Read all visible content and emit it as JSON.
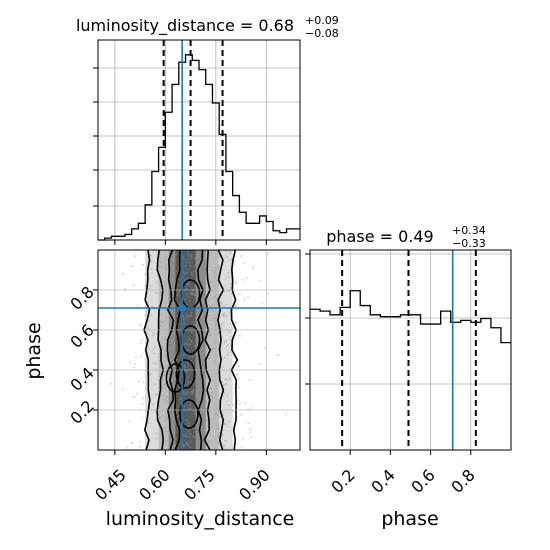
{
  "chart_data": {
    "type": "corner",
    "colors": {
      "truth": "#1f77b4",
      "hist": "#000000",
      "grid": "#b0b0b0",
      "scatter": "#9a9a9a"
    },
    "parameters": [
      "luminosity_distance",
      "phase"
    ],
    "truth": {
      "luminosity_distance": 0.65,
      "phase": 0.71
    },
    "grid": true,
    "panels": [
      {
        "id": "hist_luminosity_distance",
        "type": "histogram",
        "title": {
          "name": "luminosity_distance",
          "median": "0.68",
          "plus": "+0.09",
          "minus": "−0.08"
        },
        "xlim": [
          0.4,
          1.0
        ],
        "x_ticks": [
          0.45,
          0.6,
          0.75,
          0.9
        ],
        "ylim": [
          0,
          1.0
        ],
        "bin_edges": [
          0.4,
          0.42,
          0.44,
          0.46,
          0.48,
          0.5,
          0.52,
          0.54,
          0.56,
          0.58,
          0.6,
          0.62,
          0.64,
          0.66,
          0.68,
          0.7,
          0.72,
          0.74,
          0.76,
          0.78,
          0.8,
          0.82,
          0.84,
          0.86,
          0.88,
          0.9,
          0.92,
          0.94,
          0.96,
          0.98,
          1.0
        ],
        "counts": [
          0.0,
          0.01,
          0.02,
          0.02,
          0.03,
          0.06,
          0.09,
          0.19,
          0.37,
          0.5,
          0.69,
          0.84,
          0.96,
          1.0,
          0.97,
          0.92,
          0.84,
          0.74,
          0.57,
          0.37,
          0.24,
          0.15,
          0.09,
          0.09,
          0.13,
          0.1,
          0.05,
          0.04,
          0.06,
          0.06
        ],
        "quantiles": [
          0.595,
          0.675,
          0.77
        ]
      },
      {
        "id": "hist_phase",
        "type": "histogram",
        "title": {
          "name": "phase",
          "median": "0.49",
          "plus": "+0.34",
          "minus": "−0.33"
        },
        "xlim": [
          0.0,
          1.0
        ],
        "x_ticks": [
          0.2,
          0.4,
          0.6,
          0.8
        ],
        "ylim": [
          0,
          1.0
        ],
        "bin_edges": [
          0.0,
          0.05,
          0.1,
          0.15,
          0.2,
          0.25,
          0.3,
          0.35,
          0.4,
          0.45,
          0.5,
          0.55,
          0.6,
          0.65,
          0.7,
          0.75,
          0.8,
          0.85,
          0.9,
          0.95,
          1.0
        ],
        "counts": [
          0.76,
          0.75,
          0.73,
          0.77,
          0.86,
          0.78,
          0.73,
          0.72,
          0.72,
          0.73,
          0.73,
          0.68,
          0.68,
          0.75,
          0.69,
          0.7,
          0.69,
          0.71,
          0.66,
          0.58
        ],
        "quantiles": [
          0.16,
          0.49,
          0.825
        ]
      },
      {
        "id": "joint",
        "type": "2d_density",
        "x_param": "luminosity_distance",
        "y_param": "phase",
        "xlim": [
          0.4,
          1.0
        ],
        "ylim": [
          0.0,
          1.0
        ],
        "x_ticks": [
          0.45,
          0.6,
          0.75,
          0.9
        ],
        "y_ticks": [
          0.2,
          0.4,
          0.6,
          0.8
        ]
      }
    ],
    "labels": {
      "x_left": "luminosity_distance",
      "x_right": "phase",
      "y_left": "phase"
    },
    "tick_labels": {
      "x_left": [
        "0.45",
        "0.60",
        "0.75",
        "0.90"
      ],
      "x_right": [
        "0.2",
        "0.4",
        "0.6",
        "0.8"
      ],
      "y_left": [
        "0.2",
        "0.4",
        "0.6",
        "0.8"
      ]
    }
  }
}
